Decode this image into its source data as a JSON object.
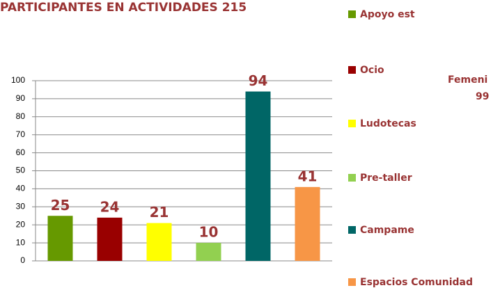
{
  "chart_data": {
    "type": "bar",
    "title": "PARTICIPANTES EN ACTIVIDADES 215",
    "categories": [
      "Apoyo est",
      "Ocio",
      "Ludotecas",
      "Pre-taller",
      "Campame",
      "Espacios Comunidad"
    ],
    "values": [
      25,
      24,
      21,
      10,
      94,
      41
    ],
    "colors": [
      "#669900",
      "#990000",
      "#ffff00",
      "#92d050",
      "#006666",
      "#f79646"
    ],
    "ylim": [
      0,
      100
    ],
    "yticks": [
      0,
      10,
      20,
      30,
      40,
      50,
      60,
      70,
      80,
      90,
      100
    ],
    "grid": true,
    "legend": "right",
    "annotations": [
      "Femeni",
      "99"
    ]
  }
}
